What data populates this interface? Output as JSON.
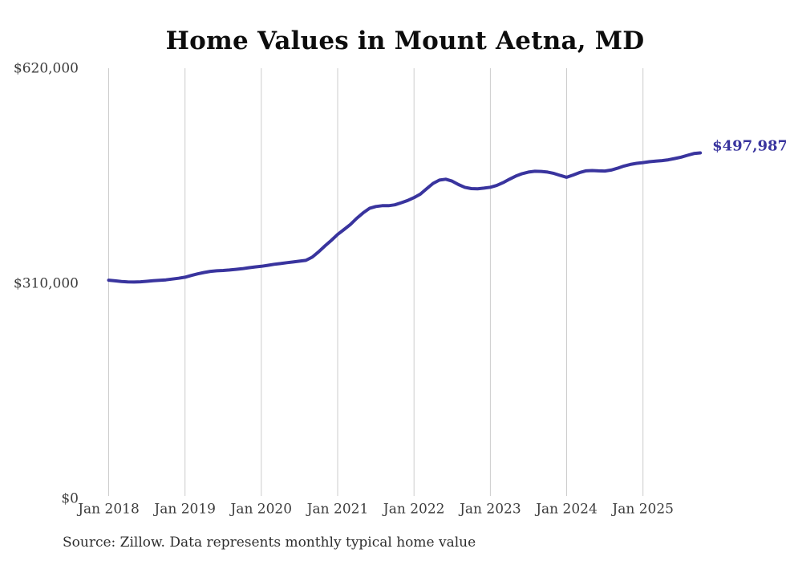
{
  "header": {
    "title": "Home Values in Mount Aetna, MD"
  },
  "footer": {
    "source": "Source: Zillow. Data represents monthly typical home value"
  },
  "chart_data": {
    "type": "line",
    "title": "Home Values in Mount Aetna, MD",
    "xlabel": "",
    "ylabel": "",
    "ylim": [
      0,
      620000
    ],
    "grid": "vertical-only",
    "grid_color": "#cccccc",
    "legend": "none",
    "tick_color": "#3d3d3d",
    "y_ticks": [
      {
        "label": "$620,000",
        "value": 620000
      },
      {
        "label": "$310,000",
        "value": 310000
      },
      {
        "label": "$0",
        "value": 0
      }
    ],
    "x_ticks": [
      {
        "label": "Jan 2018",
        "month_index": 0
      },
      {
        "label": "Jan 2019",
        "month_index": 12
      },
      {
        "label": "Jan 2020",
        "month_index": 24
      },
      {
        "label": "Jan 2021",
        "month_index": 36
      },
      {
        "label": "Jan 2022",
        "month_index": 48
      },
      {
        "label": "Jan 2023",
        "month_index": 60
      },
      {
        "label": "Jan 2024",
        "month_index": 72
      },
      {
        "label": "Jan 2025",
        "month_index": 84
      }
    ],
    "start_month": "2018-01",
    "end_month": "2025-10",
    "end_annotation": "$497,987",
    "series": [
      {
        "name": "Monthly typical home value",
        "color": "#39349e",
        "values": [
          314500,
          313600,
          312700,
          312100,
          311900,
          312200,
          312900,
          313700,
          314400,
          315000,
          316100,
          317300,
          318800,
          321300,
          323700,
          325600,
          327200,
          328100,
          328500,
          329200,
          330100,
          331100,
          332400,
          333600,
          334500,
          335900,
          337400,
          338500,
          339700,
          340800,
          341900,
          343100,
          347700,
          355400,
          363900,
          371900,
          380400,
          387500,
          394800,
          403700,
          411400,
          418000,
          420700,
          421800,
          421900,
          423100,
          426100,
          429400,
          433500,
          438500,
          446400,
          454000,
          458700,
          460000,
          457200,
          452300,
          448400,
          446500,
          446300,
          447200,
          448500,
          451000,
          455000,
          460000,
          464500,
          468000,
          470300,
          471500,
          471200,
          470300,
          468300,
          465500,
          462800,
          466000,
          469500,
          472000,
          472500,
          472000,
          471800,
          473200,
          475900,
          479000,
          481300,
          482900,
          484000,
          485300,
          486100,
          486900,
          488000,
          489900,
          491800,
          494500,
          497000,
          497987
        ]
      }
    ]
  }
}
